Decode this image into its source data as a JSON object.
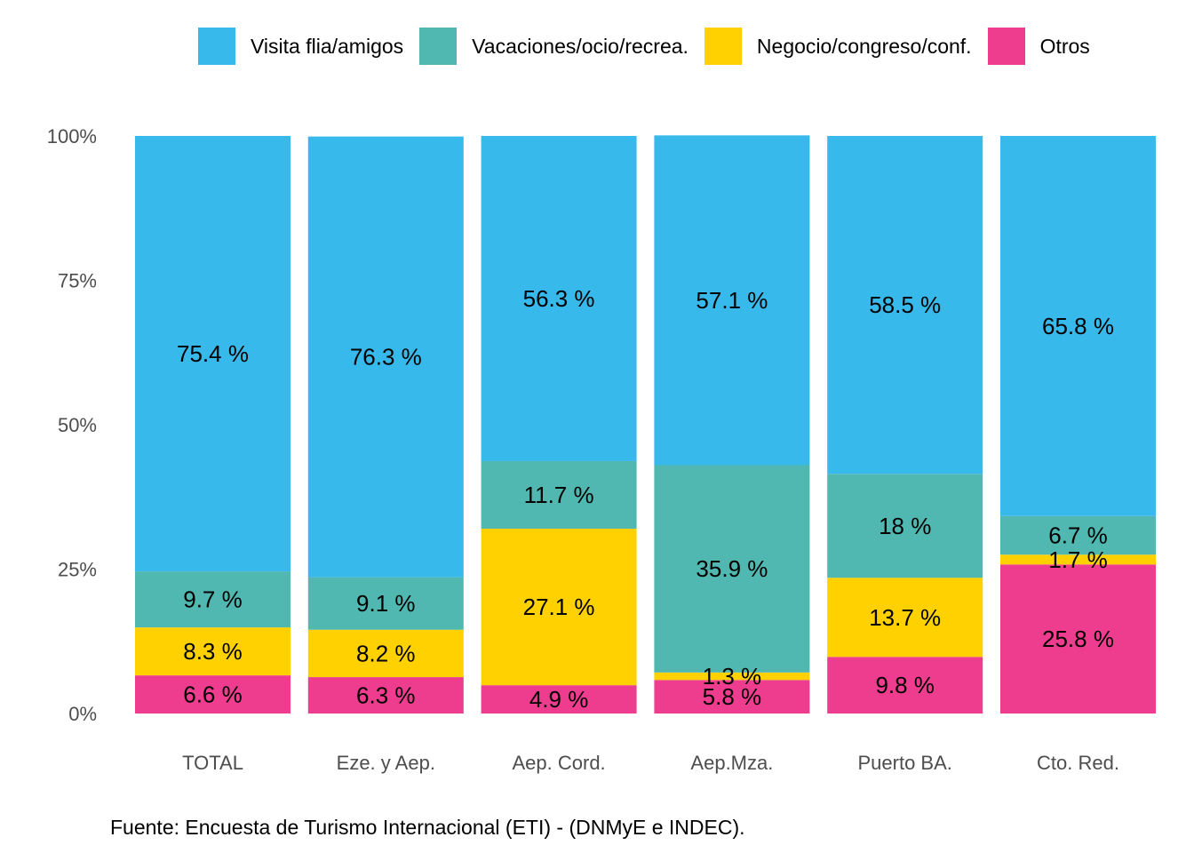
{
  "chart_data": {
    "type": "bar",
    "stacked": true,
    "orientation": "vertical",
    "categories": [
      "TOTAL",
      "Eze. y Aep.",
      "Aep. Cord.",
      "Aep.Mza.",
      "Puerto BA.",
      "Cto. Red."
    ],
    "series": [
      {
        "name": "Otros",
        "color": "#EE3D8F",
        "values": [
          6.6,
          6.3,
          4.9,
          5.8,
          9.8,
          25.8
        ],
        "labels": [
          "6.6 %",
          "6.3 %",
          "4.9 %",
          "5.8 %",
          "9.8 %",
          "25.8 %"
        ]
      },
      {
        "name": "Negocio/congreso/conf.",
        "color": "#FFD100",
        "values": [
          8.3,
          8.2,
          27.1,
          1.3,
          13.7,
          1.7
        ],
        "labels": [
          "8.3 %",
          "8.2 %",
          "27.1 %",
          "1.3 %",
          "13.7 %",
          "1.7 %"
        ]
      },
      {
        "name": "Vacaciones/ocio/recrea.",
        "color": "#50B8B1",
        "values": [
          9.7,
          9.1,
          11.7,
          35.9,
          18,
          6.7
        ],
        "labels": [
          "9.7 %",
          "9.1 %",
          "11.7 %",
          "35.9 %",
          "18 %",
          "6.7 %"
        ]
      },
      {
        "name": "Visita flia/amigos",
        "color": "#38B9EB",
        "values": [
          75.4,
          76.3,
          56.3,
          57.1,
          58.5,
          65.8
        ],
        "labels": [
          "75.4 %",
          "76.3 %",
          "56.3 %",
          "57.1 %",
          "58.5 %",
          "65.8 %"
        ]
      }
    ],
    "legend_order": [
      "Visita flia/amigos",
      "Vacaciones/ocio/recrea.",
      "Negocio/congreso/conf.",
      "Otros"
    ],
    "ylim": [
      0,
      100
    ],
    "yticks": [
      0,
      25,
      50,
      75,
      100
    ],
    "ytick_labels": [
      "0%",
      "25%",
      "50%",
      "75%",
      "100%"
    ],
    "grid": false,
    "legend_position": "top"
  },
  "caption": "Fuente: Encuesta de Turismo Internacional (ETI) - (DNMyE e INDEC)."
}
